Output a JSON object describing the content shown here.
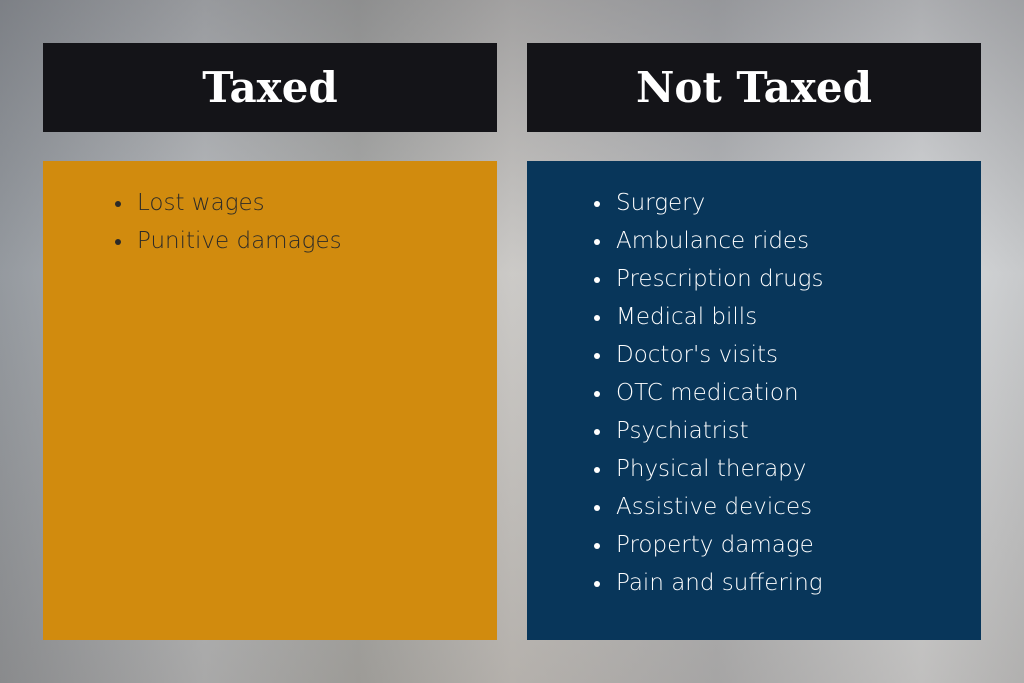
{
  "taxed": {
    "title": "Taxed",
    "items": [
      "Lost wages",
      "Punitive damages"
    ]
  },
  "not_taxed": {
    "title": "Not Taxed",
    "items": [
      "Surgery",
      "Ambulance rides",
      "Prescription drugs",
      "Medical bills",
      "Doctor's visits",
      "OTC medication",
      "Psychiatrist",
      "Physical therapy",
      "Assistive devices",
      "Property damage",
      "Pain and suffering"
    ]
  },
  "colors": {
    "header": "#141418",
    "taxed_panel": "#d18b0e",
    "not_taxed_panel": "#08365a"
  }
}
